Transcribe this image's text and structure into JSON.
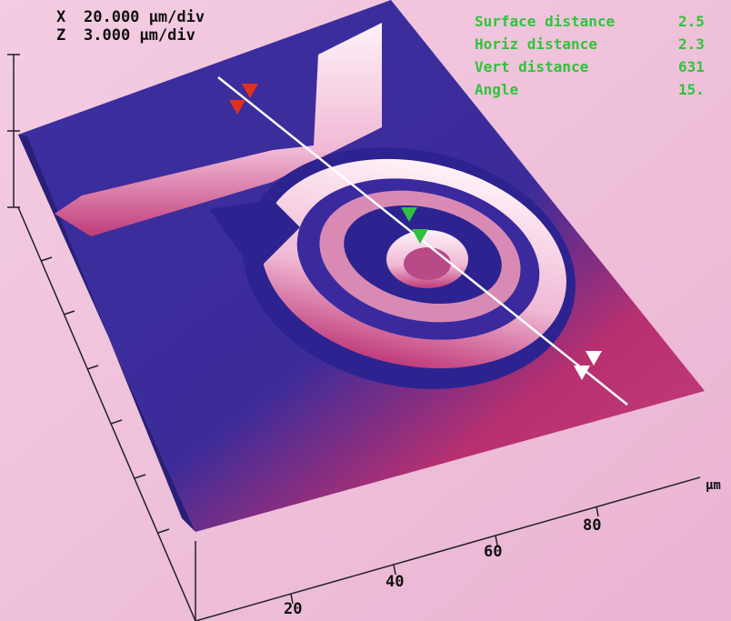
{
  "scale": {
    "x_label": "X",
    "x_value": "20.000 µm/div",
    "z_label": "Z",
    "z_value": "3.000 µm/div"
  },
  "measurements": [
    {
      "label": "Surface distance",
      "value": "2.5"
    },
    {
      "label": "Horiz distance",
      "value": "2.3"
    },
    {
      "label": "Vert distance",
      "value": "631"
    },
    {
      "label": "Angle",
      "value": "15."
    }
  ],
  "axis": {
    "ticks": [
      "20",
      "40",
      "60",
      "80"
    ],
    "unit": "µm"
  }
}
